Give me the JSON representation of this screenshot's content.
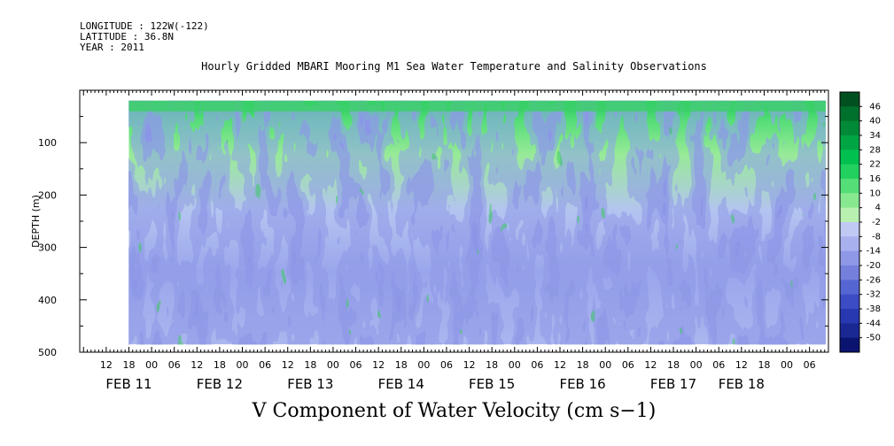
{
  "header": {
    "longitude": "LONGITUDE : 122W(-122)",
    "latitude": "LATITUDE : 36.8N",
    "year": "YEAR : 2011"
  },
  "chart_data": {
    "type": "heatmap",
    "title": "Hourly Gridded MBARI Mooring M1 Sea Water Temperature and Salinity Observations",
    "bottom_title": "V Component of Water Velocity (cm s−1)",
    "ylabel": "DEPTH (m)",
    "ylim": [
      500,
      0
    ],
    "y_ticks": [
      100,
      200,
      300,
      400,
      500
    ],
    "x_start_hour": 12,
    "x_hour_labels": [
      "12",
      "18",
      "00",
      "06",
      "12",
      "18",
      "00",
      "06",
      "12",
      "18",
      "00",
      "06",
      "12",
      "18",
      "00",
      "06",
      "12",
      "18",
      "00",
      "06",
      "12",
      "18",
      "00",
      "06",
      "12",
      "18",
      "00",
      "06",
      "12",
      "18",
      "00",
      "06"
    ],
    "day_labels": [
      {
        "label": "FEB 11",
        "hour": 6
      },
      {
        "label": "FEB 12",
        "hour": 30
      },
      {
        "label": "FEB 13",
        "hour": 54
      },
      {
        "label": "FEB 14",
        "hour": 78
      },
      {
        "label": "FEB 15",
        "hour": 102
      },
      {
        "label": "FEB 16",
        "hour": 126
      },
      {
        "label": "FEB 17",
        "hour": 150
      },
      {
        "label": "FEB 18",
        "hour": 168
      }
    ],
    "colorbar_levels": [
      "46",
      "40",
      "34",
      "28",
      "22",
      "16",
      "10",
      "4",
      "-2",
      "-8",
      "-14",
      "-20",
      "-26",
      "-32",
      "-38",
      "-44",
      "-50"
    ],
    "colorbar_colors": [
      "#005020",
      "#00702d",
      "#008a37",
      "#00a543",
      "#00c04f",
      "#22d060",
      "#55dd78",
      "#88e890",
      "#b8f0b0",
      "#c0c8f4",
      "#a8b0ee",
      "#8e98e6",
      "#7580dc",
      "#5566d2",
      "#3c4cc4",
      "#2838b0",
      "#1a2894",
      "#0a1470"
    ],
    "data_x_range_hours": [
      18,
      183
    ],
    "data_depth_range_m": [
      20,
      485
    ]
  }
}
